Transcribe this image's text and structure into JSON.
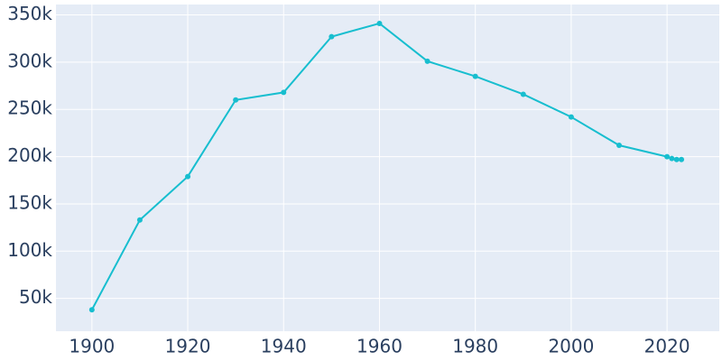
{
  "chart_data": {
    "type": "line",
    "x": [
      1900,
      1910,
      1920,
      1930,
      1940,
      1950,
      1960,
      1970,
      1980,
      1990,
      2000,
      2010,
      2020,
      2021,
      2022,
      2023
    ],
    "series": [
      {
        "color": "#17becf",
        "values": [
          38000,
          133000,
          179000,
          260000,
          268000,
          327000,
          341000,
          301000,
          285000,
          266000,
          242000,
          212000,
          200000,
          198000,
          197000,
          197000
        ]
      }
    ],
    "xlim": [
      1892.5,
      2030.9
    ],
    "xticks": [
      1900,
      1920,
      1940,
      1960,
      1980,
      2000,
      2020
    ],
    "ylim": [
      15300,
      361000
    ],
    "yticks": [
      {
        "value": 50000,
        "label": "50k"
      },
      {
        "value": 100000,
        "label": "100k"
      },
      {
        "value": 150000,
        "label": "150k"
      },
      {
        "value": 200000,
        "label": "200k"
      },
      {
        "value": 250000,
        "label": "250k"
      },
      {
        "value": 300000,
        "label": "300k"
      },
      {
        "value": 350000,
        "label": "350k"
      }
    ],
    "grid": true
  }
}
